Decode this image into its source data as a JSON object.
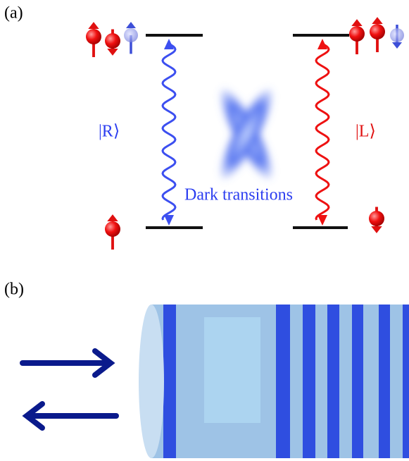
{
  "panel_a": {
    "label": "(a)",
    "left_polarization": "|R⟩",
    "right_polarization": "|L⟩",
    "center_label": "Dark transitions"
  },
  "panel_b": {
    "label": "(b)"
  }
}
